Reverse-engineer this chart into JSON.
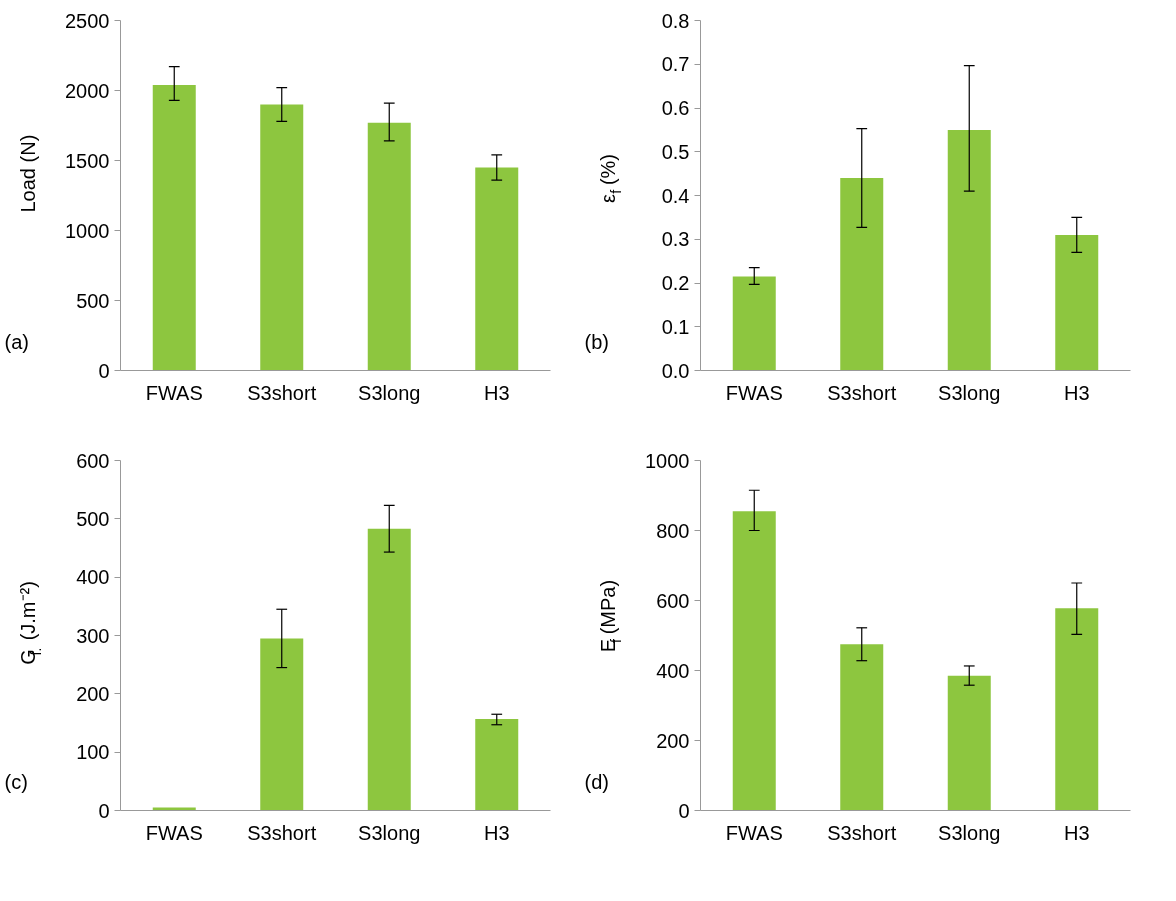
{
  "chart_data": [
    {
      "type": "bar",
      "categories": [
        "FWAS",
        "S3short",
        "S3long",
        "H3"
      ],
      "values": [
        2040,
        1900,
        1770,
        1450
      ],
      "errors": [
        [
          1930,
          2170
        ],
        [
          1780,
          2020
        ],
        [
          1640,
          1910
        ],
        [
          1360,
          1540
        ]
      ],
      "color": "#8dc63f",
      "ylabel": "Load (N)",
      "ylim": [
        0,
        2500
      ],
      "yticks": [
        0,
        500,
        1000,
        1500,
        2000,
        2500
      ],
      "annotations": [
        "(a)"
      ]
    },
    {
      "type": "bar",
      "categories": [
        "FWAS",
        "S3short",
        "S3long",
        "H3"
      ],
      "values": [
        0.215,
        0.44,
        0.55,
        0.31
      ],
      "errors": [
        [
          0.197,
          0.235
        ],
        [
          0.327,
          0.553
        ],
        [
          0.41,
          0.697
        ],
        [
          0.27,
          0.35
        ]
      ],
      "color": "#8dc63f",
      "ylabel": "ε$_{f}$ (%)",
      "ylim": [
        0,
        0.8
      ],
      "yticks": [
        {
          "value": 0,
          "label": "0.0"
        },
        0.1,
        0.2,
        0.3,
        0.4,
        0.5,
        0.6,
        0.7,
        0.8
      ],
      "annotations": [
        "(b)"
      ]
    },
    {
      "type": "bar",
      "categories": [
        "FWAS",
        "S3short",
        "S3long",
        "H3"
      ],
      "values": [
        5,
        295,
        483,
        157
      ],
      "errors": [
        null,
        [
          245,
          345
        ],
        [
          443,
          523
        ],
        [
          147,
          165
        ]
      ],
      "color": "#8dc63f",
      "ylabel": "G$_{f.}$ (J.m⁻²)",
      "ylim": [
        0,
        600
      ],
      "yticks": [
        0,
        100,
        200,
        300,
        400,
        500,
        600
      ],
      "annotations": [
        "(c)"
      ]
    },
    {
      "type": "bar",
      "categories": [
        "FWAS",
        "S3short",
        "S3long",
        "H3"
      ],
      "values": [
        855,
        475,
        385,
        578
      ],
      "errors": [
        [
          800,
          915
        ],
        [
          428,
          522
        ],
        [
          358,
          413
        ],
        [
          503,
          650
        ]
      ],
      "color": "#8dc63f",
      "ylabel": "E$_{f}$ (MPa)",
      "ylim": [
        0,
        1000
      ],
      "yticks": [
        0,
        200,
        400,
        600,
        800,
        1000
      ],
      "annotations": [
        "(d)"
      ]
    }
  ]
}
